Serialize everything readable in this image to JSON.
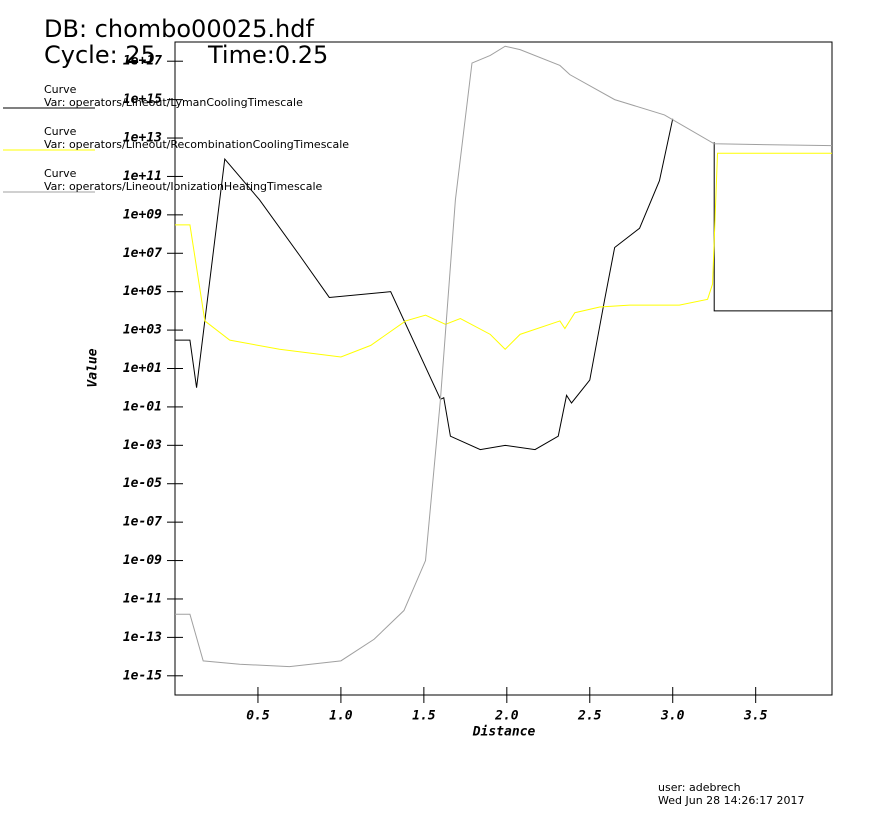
{
  "chart_data": {
    "type": "line",
    "title": "DB: chombo00025.hdf",
    "subtitle": "Cycle: 25",
    "time_label": "Time:0.25",
    "legend_heading": "Curve",
    "x_label": "Distance",
    "y_label": "Value",
    "log_scale": "y",
    "xlim": [
      0,
      3.96
    ],
    "ylim": [
      1e-16,
      1e+18
    ],
    "xticks": [
      0.5,
      {
        "value": 1,
        "label": "1.0"
      },
      1.5,
      {
        "value": 2,
        "label": "2.0"
      },
      2.5,
      {
        "value": 3,
        "label": "3.0"
      },
      3.5
    ],
    "yticks": [
      {
        "value": 1e-15,
        "label": "1e-15"
      },
      {
        "value": 1e-13,
        "label": "1e-13"
      },
      {
        "value": 1e-11,
        "label": "1e-11"
      },
      {
        "value": 1e-09,
        "label": "1e-09"
      },
      {
        "value": 1e-07,
        "label": "1e-07"
      },
      {
        "value": 1e-05,
        "label": "1e-05"
      },
      {
        "value": 0.001,
        "label": "1e-03"
      },
      {
        "value": 0.1,
        "label": "1e-01"
      },
      {
        "value": 10,
        "label": "1e+01"
      },
      {
        "value": 1000,
        "label": "1e+03"
      },
      {
        "value": 100000.0,
        "label": "1e+05"
      },
      {
        "value": 10000000.0,
        "label": "1e+07"
      },
      {
        "value": 1000000000.0,
        "label": "1e+09"
      },
      {
        "value": 100000000000.0,
        "label": "1e+11"
      },
      {
        "value": 10000000000000.0,
        "label": "1e+13"
      },
      {
        "value": 1000000000000000.0,
        "label": "1e+15"
      },
      {
        "value": 1e+17,
        "label": "1e+17"
      }
    ],
    "series": [
      {
        "name": "Var: operators/Lineout/LymanCoolingTimescale",
        "color": "#000000",
        "x": [
          0,
          0.09,
          0.13,
          0.3,
          0.51,
          0.75,
          0.93,
          1.3,
          1.6,
          1.62,
          1.66,
          1.84,
          1.99,
          2.17,
          2.31,
          2.36,
          2.39,
          2.5,
          2.59,
          2.65,
          2.8,
          2.92,
          3.0,
          3.1,
          3.25,
          3.25,
          3.96
        ],
        "values": [
          300,
          300,
          1,
          800000000000.0,
          6000000000.0,
          8000000.0,
          50000.0,
          100000.0,
          0.25,
          0.3,
          0.003,
          0.0006,
          0.001,
          0.0006,
          0.003,
          0.4,
          0.16,
          2.5,
          40000.0,
          20000000.0,
          200000000.0,
          60000000000.0,
          100000000000000.0,
          null,
          6000000000000.0,
          10000.0,
          10000.0
        ]
      },
      {
        "name": "Var: operators/Lineout/RecombinationCoolingTimescale",
        "color": "#ffff00",
        "x": [
          0,
          0.09,
          0.18,
          0.33,
          0.63,
          1.0,
          1.18,
          1.39,
          1.51,
          1.63,
          1.72,
          1.9,
          1.99,
          2.08,
          2.32,
          2.35,
          2.41,
          2.56,
          2.74,
          3.04,
          3.21,
          3.24,
          3.27,
          3.96
        ],
        "values": [
          300000000.0,
          300000000.0,
          3000,
          300,
          100,
          40,
          160,
          3000,
          6000,
          2000,
          4000,
          600,
          100,
          600,
          3000,
          1200,
          8000,
          16000,
          20000,
          20000,
          40000,
          250000,
          1600000000000.0,
          1600000000000.0
        ]
      },
      {
        "name": "Var: operators/Lineout/IonizationHeatingTimescale",
        "color": "#a0a0a0",
        "x": [
          0,
          0.09,
          0.17,
          0.39,
          0.69,
          1.0,
          1.2,
          1.38,
          1.51,
          1.6,
          1.69,
          1.79,
          1.9,
          1.99,
          2.08,
          2.32,
          2.38,
          2.65,
          2.95,
          3.25,
          3.96
        ],
        "values": [
          1.6e-12,
          1.6e-12,
          6e-15,
          4e-15,
          3e-15,
          6e-15,
          8e-14,
          2.5e-12,
          1e-09,
          0.25,
          6000000000.0,
          8e+16,
          2e+17,
          6e+17,
          4e+17,
          6e+16,
          2e+16,
          1000000000000000.0,
          160000000000000.0,
          5000000000000.0,
          4000000000000.0
        ]
      }
    ],
    "footer": [
      "user: adebrech",
      "Wed Jun 28 14:26:17 2017"
    ]
  }
}
